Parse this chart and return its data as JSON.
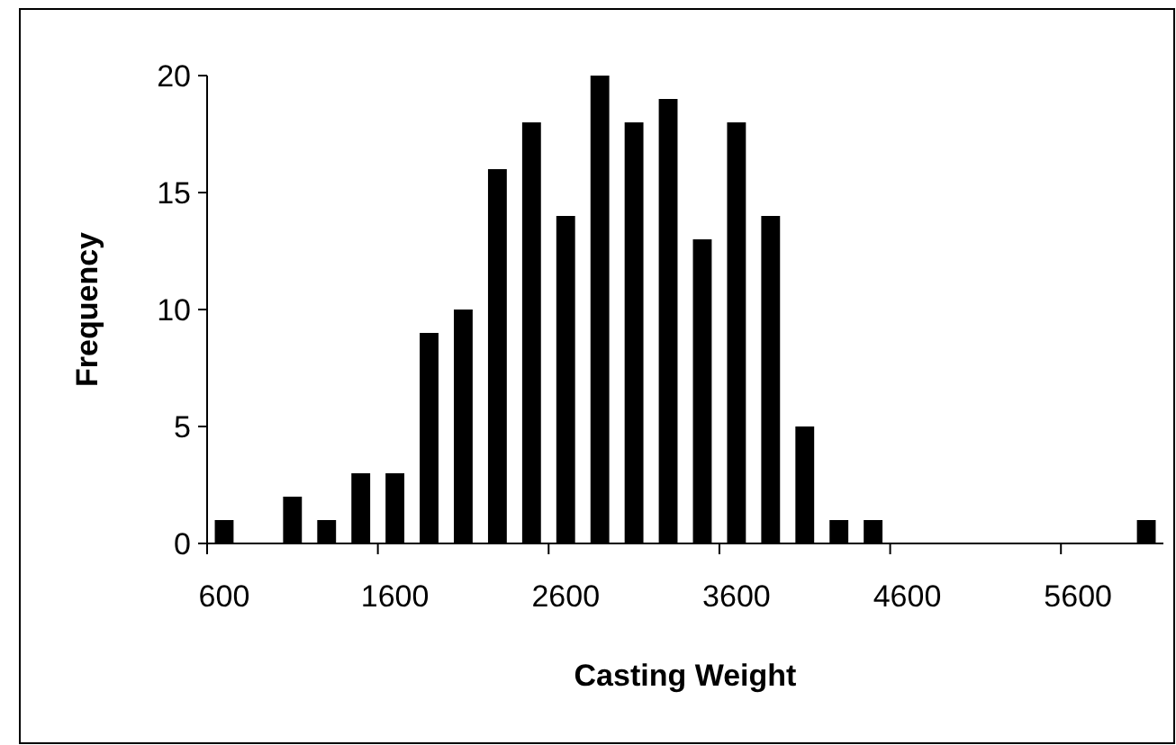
{
  "chart_data": {
    "type": "bar",
    "xlabel": "Casting Weight",
    "ylabel": "Frequency",
    "categories": [
      "600",
      null,
      null,
      null,
      null,
      "1600",
      null,
      null,
      null,
      null,
      "2600",
      null,
      null,
      null,
      null,
      "3600",
      null,
      null,
      null,
      null,
      "4600",
      null,
      null,
      null,
      null,
      "5600",
      null,
      null
    ],
    "values": [
      1,
      0,
      2,
      1,
      3,
      3,
      9,
      10,
      16,
      18,
      14,
      20,
      18,
      19,
      13,
      18,
      14,
      5,
      1,
      1,
      0,
      0,
      0,
      0,
      0,
      0,
      0,
      1
    ],
    "color": "#000000",
    "ylim": [
      0,
      20
    ],
    "yticks": [
      0,
      5,
      10,
      15,
      20
    ],
    "grid": false
  }
}
